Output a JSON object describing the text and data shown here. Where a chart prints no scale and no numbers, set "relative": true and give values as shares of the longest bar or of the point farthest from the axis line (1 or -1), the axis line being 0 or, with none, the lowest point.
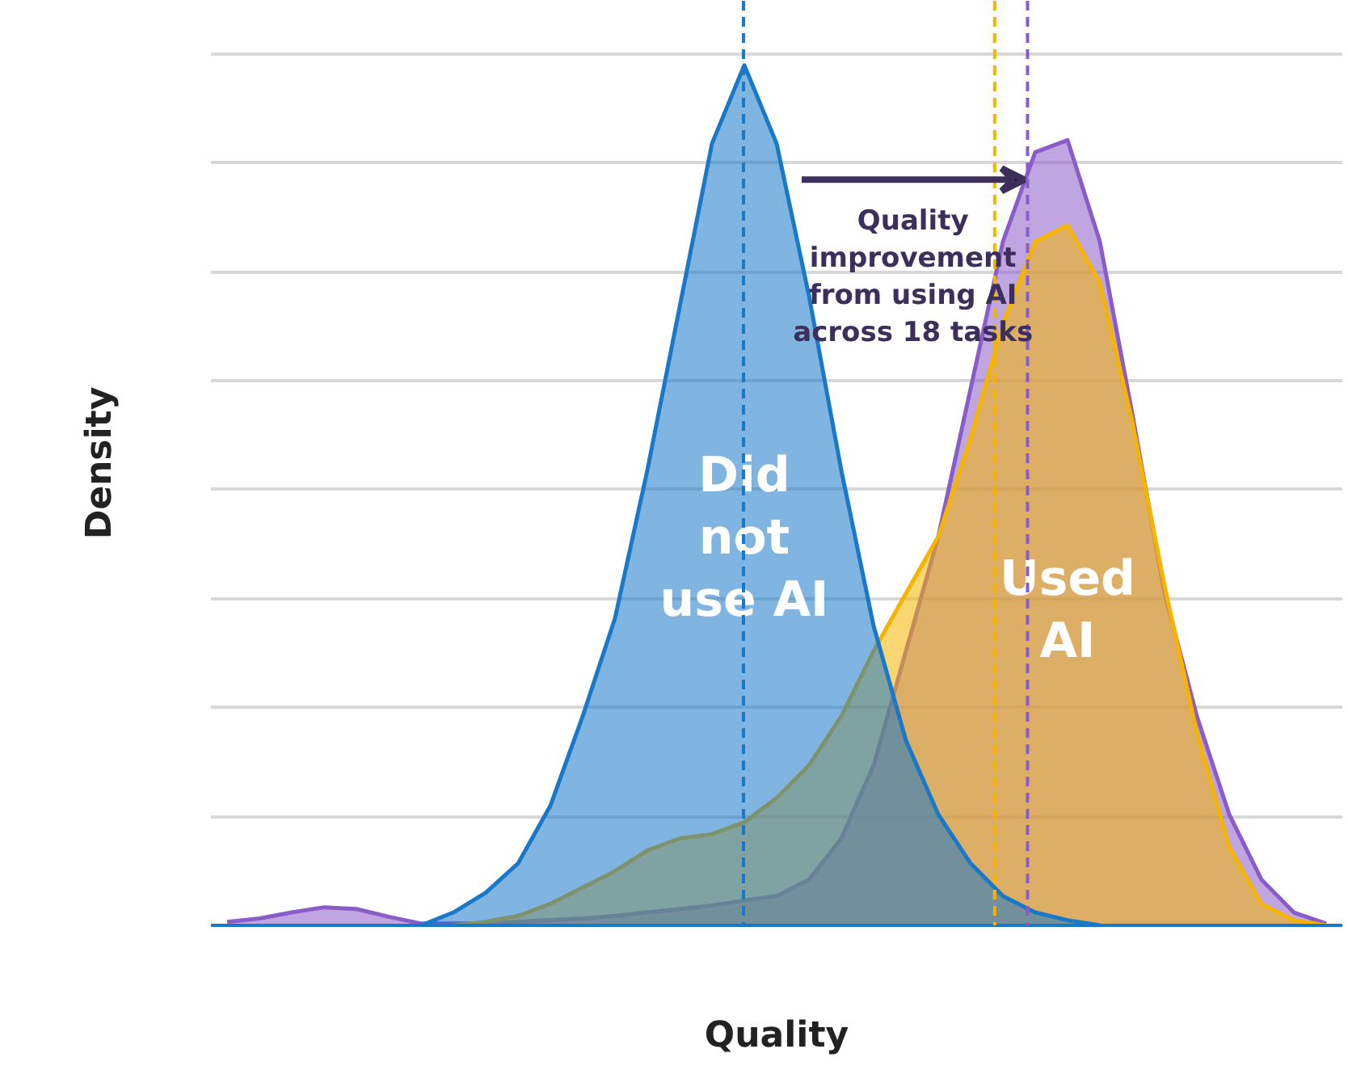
{
  "chart_data": {
    "type": "area",
    "relative": true,
    "xlabel": "Quality",
    "ylabel": "Density",
    "categories": [
      null,
      null,
      null,
      null,
      null,
      null,
      null,
      null,
      null,
      null,
      null,
      null,
      null,
      null,
      null,
      null,
      null,
      null,
      null,
      null,
      null,
      null,
      null,
      null,
      null,
      null,
      null,
      null,
      null,
      null,
      null,
      null,
      null,
      null,
      null
    ],
    "series": [
      {
        "color": "#8a5cc8",
        "values": [
          0.004,
          0.008,
          0.015,
          0.021,
          0.019,
          0.01,
          0.002,
          0.002,
          0.002,
          0.004,
          0.006,
          0.008,
          0.011,
          0.015,
          0.019,
          0.023,
          0.029,
          0.034,
          0.053,
          0.101,
          0.186,
          0.319,
          0.452,
          0.624,
          0.795,
          0.899,
          0.913,
          0.795,
          0.595,
          0.386,
          0.243,
          0.129,
          0.053,
          0.015,
          0.002
        ]
      },
      {
        "name": "Used AI",
        "color": "#f5b400",
        "values": [
          null,
          null,
          null,
          null,
          null,
          null,
          null,
          0,
          0.004,
          0.011,
          0.025,
          0.044,
          0.063,
          0.087,
          0.101,
          0.106,
          0.12,
          0.148,
          0.186,
          0.243,
          0.319,
          0.386,
          0.452,
          0.567,
          0.7,
          0.795,
          0.814,
          0.747,
          0.586,
          0.395,
          0.224,
          0.091,
          0.025,
          0.006,
          0
        ]
      },
      {
        "name": "Did not use AI",
        "color": "#1a78c8",
        "values": [
          null,
          null,
          null,
          null,
          null,
          null,
          0,
          0.015,
          0.038,
          0.072,
          0.139,
          0.243,
          0.357,
          0.529,
          0.719,
          0.909,
          1,
          0.909,
          0.732,
          0.529,
          0.348,
          0.215,
          0.129,
          0.072,
          0.034,
          0.015,
          0.006,
          0,
          null,
          null,
          null,
          null,
          null,
          null,
          null
        ]
      }
    ],
    "annotations": [
      "Quality improvement from using AI across 18 tasks"
    ],
    "grid": "y"
  }
}
